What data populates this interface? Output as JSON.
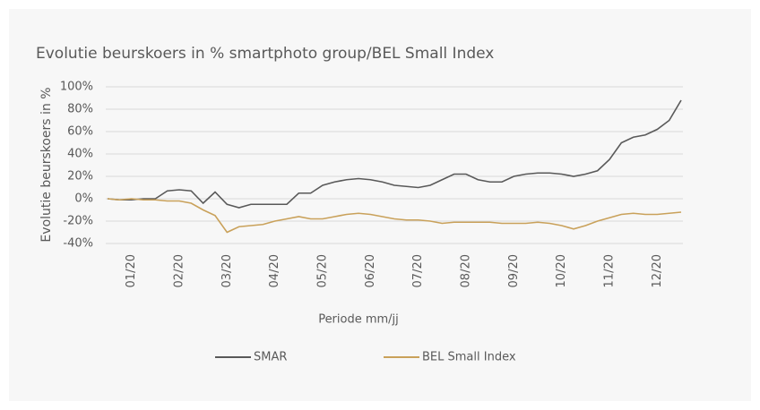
{
  "chart_data": {
    "type": "line",
    "title": "Evolutie beurskoers in % smartphoto group/BEL Small Index",
    "y_label": "Evolutie beurskoers in %",
    "x_label": "Periode mm/jj",
    "x": [
      0,
      0.25,
      0.5,
      0.75,
      1,
      1.25,
      1.5,
      1.75,
      2,
      2.25,
      2.5,
      2.75,
      3,
      3.25,
      3.5,
      3.75,
      4,
      4.25,
      4.5,
      4.75,
      5,
      5.25,
      5.5,
      5.75,
      6,
      6.25,
      6.5,
      6.75,
      7,
      7.25,
      7.5,
      7.75,
      8,
      8.25,
      8.5,
      8.75,
      9,
      9.25,
      9.5,
      9.75,
      10,
      10.25,
      10.5,
      10.75,
      11,
      11.25,
      11.5,
      11.75,
      12
    ],
    "xlim": [
      0,
      12
    ],
    "xticks": [
      {
        "value": 0.5,
        "label": "01/20"
      },
      {
        "value": 1.5,
        "label": "02/20"
      },
      {
        "value": 2.5,
        "label": "03/20"
      },
      {
        "value": 3.5,
        "label": "04/20"
      },
      {
        "value": 4.5,
        "label": "05/20"
      },
      {
        "value": 5.5,
        "label": "06/20"
      },
      {
        "value": 6.5,
        "label": "07/20"
      },
      {
        "value": 7.5,
        "label": "08/20"
      },
      {
        "value": 8.5,
        "label": "09/20"
      },
      {
        "value": 9.5,
        "label": "10/20"
      },
      {
        "value": 10.5,
        "label": "11/20"
      },
      {
        "value": 11.5,
        "label": "12/20"
      }
    ],
    "ylim": [
      -40,
      100
    ],
    "yticks": [
      {
        "value": -40,
        "label": "-40%"
      },
      {
        "value": -20,
        "label": "-20%"
      },
      {
        "value": 0,
        "label": "0%"
      },
      {
        "value": 20,
        "label": "20%"
      },
      {
        "value": 40,
        "label": "40%"
      },
      {
        "value": 60,
        "label": "60%"
      },
      {
        "value": 80,
        "label": "80%"
      },
      {
        "value": 100,
        "label": "100%"
      }
    ],
    "grid": true,
    "legend": "bottom",
    "series": [
      {
        "name": "SMAR",
        "color": "#595959",
        "values": [
          0,
          -1,
          -1,
          0,
          0,
          7,
          8,
          7,
          -4,
          6,
          -5,
          -8,
          -5,
          -5,
          -5,
          -5,
          5,
          5,
          12,
          15,
          17,
          18,
          17,
          15,
          12,
          11,
          10,
          12,
          17,
          22,
          22,
          17,
          15,
          15,
          20,
          22,
          23,
          23,
          22,
          20,
          22,
          25,
          35,
          50,
          55,
          57,
          62,
          70,
          88
        ]
      },
      {
        "name": "BEL Small Index",
        "color": "#c9a15a",
        "values": [
          0,
          -1,
          0,
          -1,
          -1,
          -2,
          -2,
          -4,
          -10,
          -15,
          -30,
          -25,
          -24,
          -23,
          -20,
          -18,
          -16,
          -18,
          -18,
          -16,
          -14,
          -13,
          -14,
          -16,
          -18,
          -19,
          -19,
          -20,
          -22,
          -21,
          -21,
          -21,
          -21,
          -22,
          -22,
          -22,
          -21,
          -22,
          -24,
          -27,
          -24,
          -20,
          -17,
          -14,
          -13,
          -14,
          -14,
          -13,
          -12
        ]
      }
    ]
  }
}
